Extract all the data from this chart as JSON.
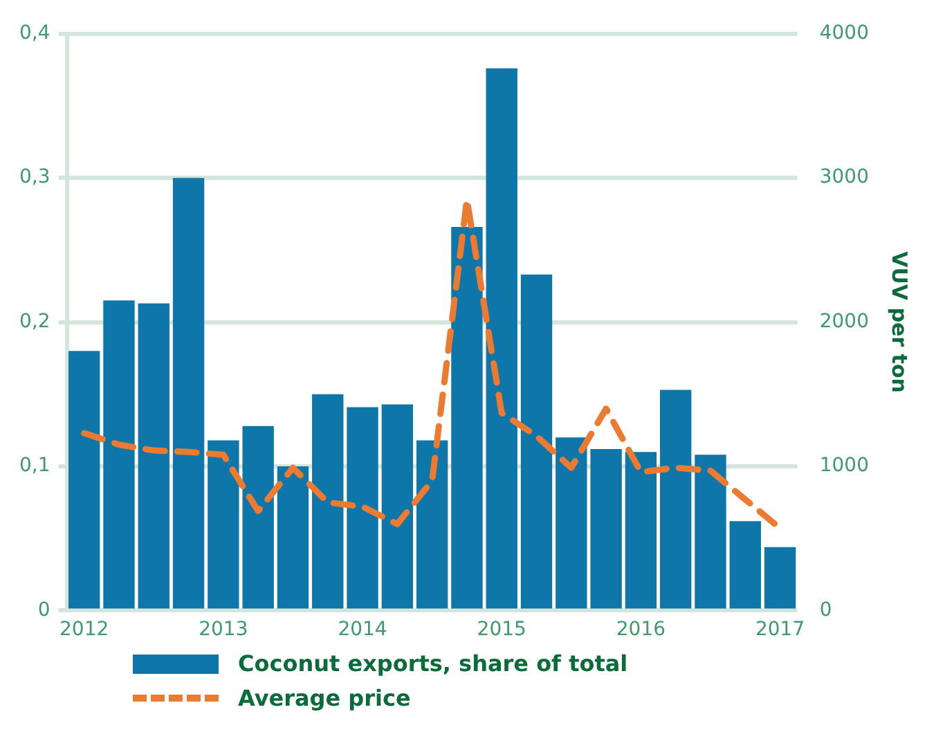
{
  "chart_data": {
    "type": "bar",
    "y2label": "VUV per ton",
    "categories": [
      "2012",
      null,
      null,
      null,
      "2013",
      null,
      null,
      null,
      "2014",
      null,
      null,
      null,
      "2015",
      null,
      null,
      null,
      "2016",
      null,
      null,
      null,
      "2017"
    ],
    "series": [
      {
        "name": "Coconut exports, share of total",
        "color": "#0e76a8",
        "values": [
          0.18,
          0.215,
          0.213,
          0.3,
          0.118,
          0.128,
          0.1,
          0.15,
          0.141,
          0.143,
          0.118,
          0.266,
          0.376,
          0.233,
          0.12,
          0.112,
          0.11,
          0.153,
          0.108,
          0.062,
          0.044
        ]
      },
      {
        "name": "Average price",
        "type": "line",
        "axis": "y2",
        "color": "#ec7a30",
        "line_style": "dashed",
        "marker": "none",
        "values": [
          1230,
          1150,
          1110,
          1100,
          1080,
          690,
          990,
          750,
          720,
          600,
          900,
          2850,
          1370,
          1210,
          990,
          1400,
          960,
          990,
          970,
          770,
          570
        ]
      }
    ],
    "ylim": [
      0,
      0.4
    ],
    "yticks": [
      0,
      {
        "value": 0.1,
        "label": "0,1"
      },
      {
        "value": 0.2,
        "label": "0,2"
      },
      {
        "value": 0.3,
        "label": "0,3"
      },
      {
        "value": 0.4,
        "label": "0,4"
      }
    ],
    "y2lim": [
      0,
      4000
    ],
    "y2ticks": [
      0,
      1000,
      2000,
      3000,
      4000
    ],
    "grid": "y",
    "legend": "bottom"
  }
}
